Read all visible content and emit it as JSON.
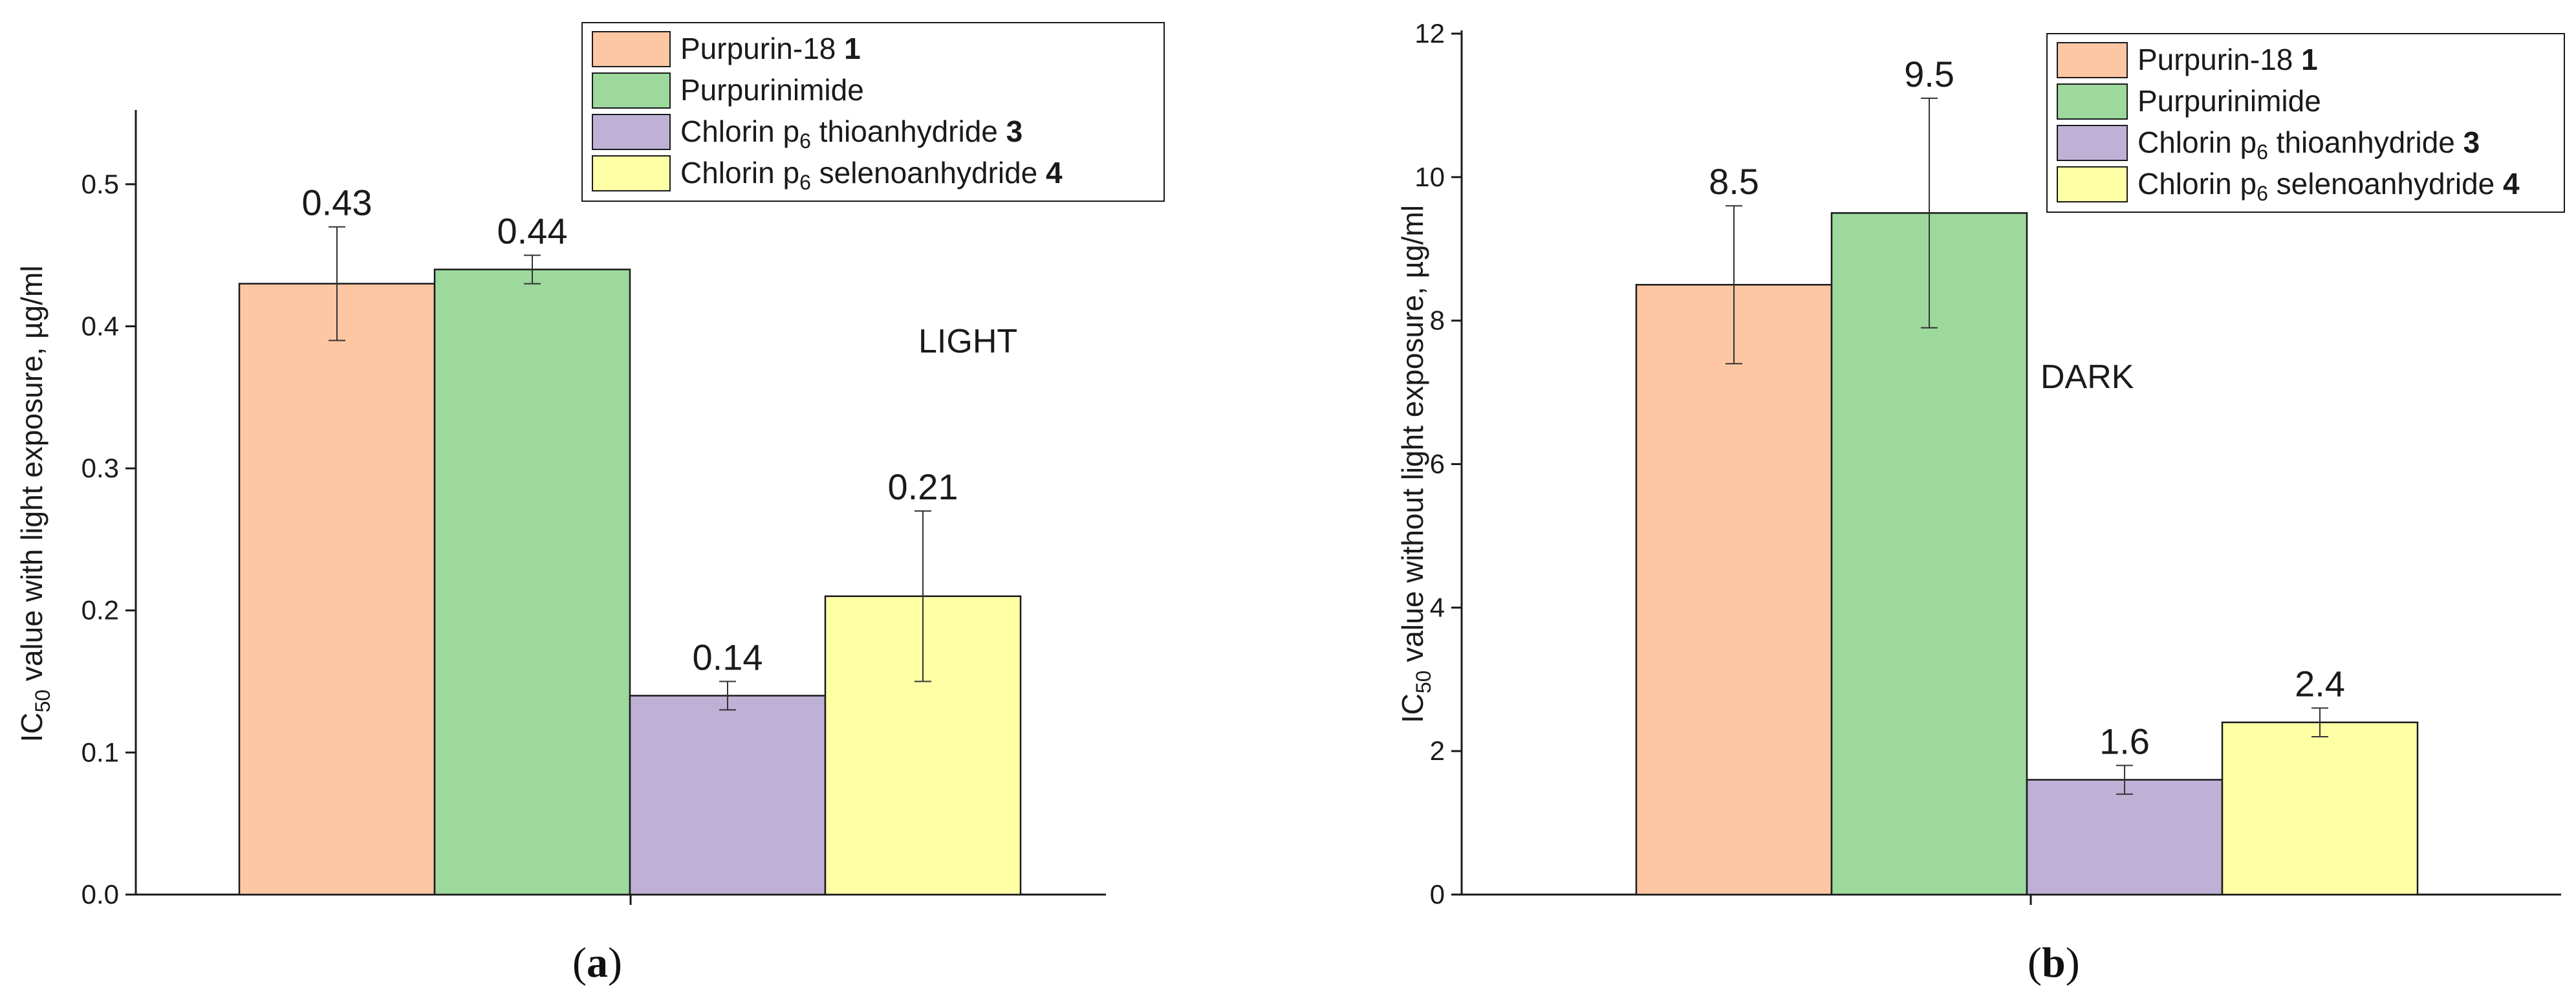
{
  "colors": {
    "purpurin18": "#FCC7A2",
    "purpurinimide": "#9DD89D",
    "thioanhydride": "#BFB1D6",
    "selenoanhydride": "#FFFFA6"
  },
  "chart_data": [
    {
      "type": "bar",
      "panel": "(a)",
      "panel_bold": "a",
      "condition": "LIGHT",
      "ylabel_prefix": "IC",
      "ylabel_sub": "50",
      "ylabel_rest": " value with light exposure, µg/ml",
      "ylim": [
        0,
        0.55
      ],
      "yticks": [
        0.0,
        0.1,
        0.2,
        0.3,
        0.4,
        0.5
      ],
      "ytick_labels": [
        "0.0",
        "0.1",
        "0.2",
        "0.3",
        "0.4",
        "0.5"
      ],
      "categories": [
        "Purpurin-18 1",
        "Purpurinimide",
        "Chlorin p6 thioanhydride 3",
        "Chlorin p6 selenoanhydride 4"
      ],
      "values": [
        0.43,
        0.44,
        0.14,
        0.21
      ],
      "value_labels": [
        "0.43",
        "0.44",
        "0.14",
        "0.21"
      ],
      "errors": [
        0.04,
        0.01,
        0.01,
        0.06
      ],
      "legend": [
        {
          "name": "Purpurin-18",
          "sub": "",
          "after": "",
          "bold": "1"
        },
        {
          "name": "Purpurinimide",
          "sub": "",
          "after": "",
          "bold": ""
        },
        {
          "name": "Chlorin p",
          "sub": "6",
          "after": " thioanhydride",
          "bold": "3"
        },
        {
          "name": "Chlorin p",
          "sub": "6",
          "after": " selenoanhydride",
          "bold": "4"
        }
      ]
    },
    {
      "type": "bar",
      "panel": "(b)",
      "panel_bold": "b",
      "condition": "DARK",
      "ylabel_prefix": "IC",
      "ylabel_sub": "50",
      "ylabel_rest": " value without light exposure, µg/ml",
      "ylim": [
        0,
        12
      ],
      "yticks": [
        0,
        2,
        4,
        6,
        8,
        10,
        12
      ],
      "ytick_labels": [
        "0",
        "2",
        "4",
        "6",
        "8",
        "10",
        "12"
      ],
      "categories": [
        "Purpurin-18 1",
        "Purpurinimide",
        "Chlorin p6 thioanhydride 3",
        "Chlorin p6 selenoanhydride 4"
      ],
      "values": [
        8.5,
        9.5,
        1.6,
        2.4
      ],
      "value_labels": [
        "8.5",
        "9.5",
        "1.6",
        "2.4"
      ],
      "errors": [
        1.1,
        1.6,
        0.2,
        0.2
      ],
      "legend": [
        {
          "name": "Purpurin-18",
          "sub": "",
          "after": "",
          "bold": "1"
        },
        {
          "name": "Purpurinimide",
          "sub": "",
          "after": "",
          "bold": ""
        },
        {
          "name": "Chlorin p",
          "sub": "6",
          "after": " thioanhydride",
          "bold": "3"
        },
        {
          "name": "Chlorin p",
          "sub": "6",
          "after": " selenoanhydride",
          "bold": "4"
        }
      ]
    }
  ]
}
